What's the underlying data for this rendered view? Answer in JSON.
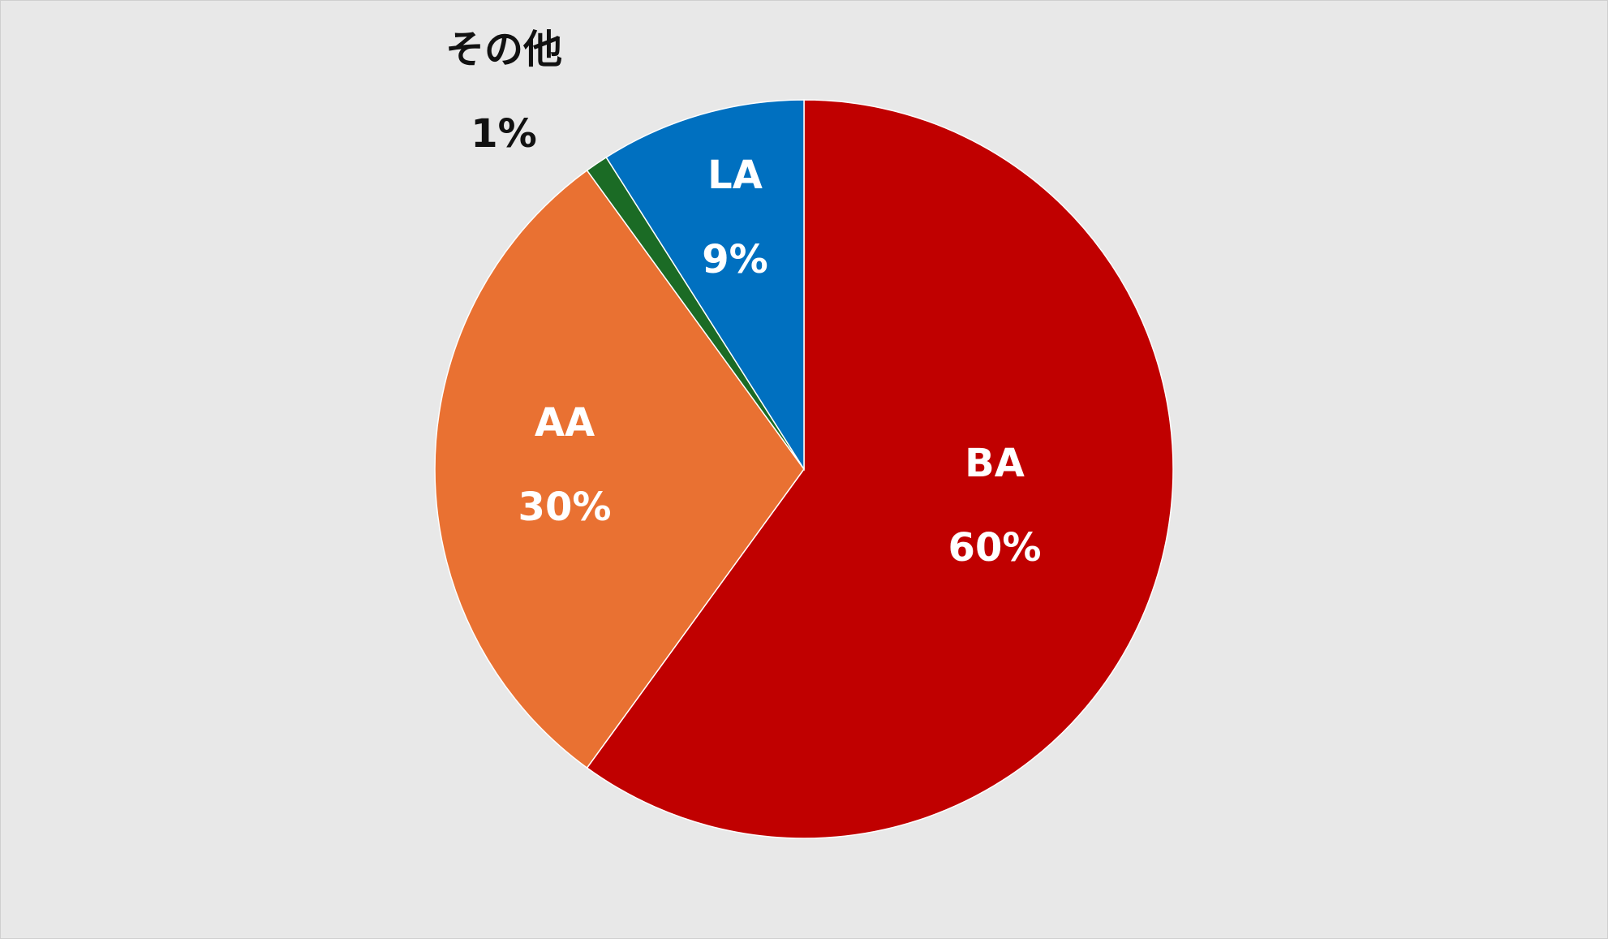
{
  "chart_data": {
    "type": "pie",
    "title": "",
    "slices": [
      {
        "label": "BA",
        "value": 60,
        "value_text": "60%",
        "color": "#c00000",
        "label_color": "#ffffff"
      },
      {
        "label": "AA",
        "value": 30,
        "value_text": "30%",
        "color": "#e97132",
        "label_color": "#ffffff"
      },
      {
        "label": "その他",
        "value": 1,
        "value_text": "1%",
        "color": "#1b6b25",
        "label_color": "#111111"
      },
      {
        "label": "LA",
        "value": 9,
        "value_text": "9%",
        "color": "#0070c0",
        "label_color": "#ffffff"
      }
    ],
    "start_angle_deg": 0,
    "direction": "clockwise",
    "legend": "none"
  }
}
